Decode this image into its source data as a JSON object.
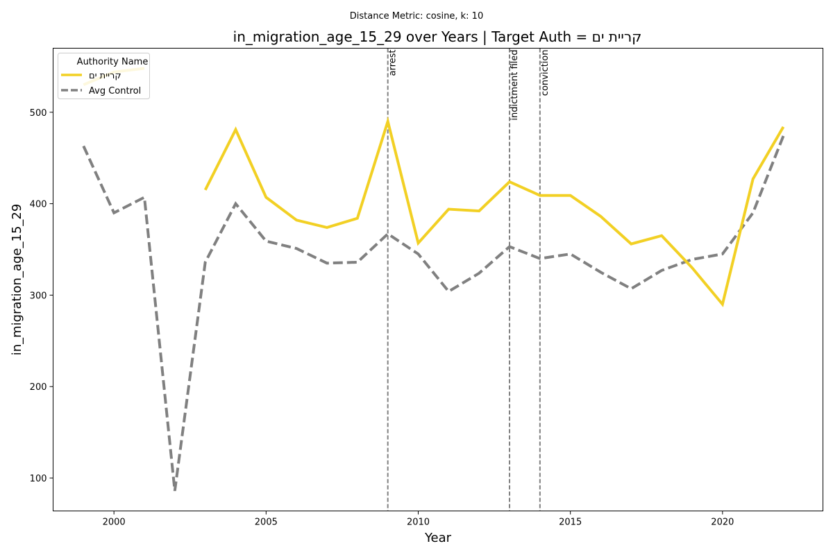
{
  "suptitle": "Distance Metric: cosine, k: 10",
  "chart_data": {
    "type": "line",
    "title": "in_migration_age_15_29 over Years | Target Auth = קריית ים",
    "xlabel": "Year",
    "ylabel": "in_migration_age_15_29",
    "xlim": [
      1998,
      2023.3
    ],
    "ylim": [
      64,
      570
    ],
    "xticks": [
      2000,
      2005,
      2010,
      2015,
      2020
    ],
    "yticks": [
      100,
      200,
      300,
      400,
      500
    ],
    "grid": false,
    "legend": {
      "title": "Authority Name",
      "placement": "top-left"
    },
    "series": [
      {
        "name": "קריית ים",
        "color": "#f2d024",
        "style": "solid",
        "points": [
          [
            1999,
            530
          ],
          [
            2000,
            544
          ],
          [
            2001,
            548
          ],
          [
            2002,
            null
          ],
          [
            2003,
            415
          ],
          [
            2004,
            481
          ],
          [
            2005,
            407
          ],
          [
            2006,
            382
          ],
          [
            2007,
            374
          ],
          [
            2008,
            384
          ],
          [
            2009,
            490
          ],
          [
            2010,
            357
          ],
          [
            2011,
            394
          ],
          [
            2012,
            392
          ],
          [
            2013,
            424
          ],
          [
            2014,
            409
          ],
          [
            2015,
            409
          ],
          [
            2016,
            386
          ],
          [
            2017,
            356
          ],
          [
            2018,
            365
          ],
          [
            2019,
            330
          ],
          [
            2020,
            290
          ],
          [
            2021,
            427
          ],
          [
            2022,
            484
          ]
        ]
      },
      {
        "name": "Avg Control",
        "color": "#808080",
        "style": "dashed",
        "points": [
          [
            1999,
            463
          ],
          [
            2000,
            390
          ],
          [
            2001,
            407
          ],
          [
            2002,
            86
          ],
          [
            2003,
            336
          ],
          [
            2004,
            400
          ],
          [
            2005,
            359
          ],
          [
            2006,
            351
          ],
          [
            2007,
            335
          ],
          [
            2008,
            336
          ],
          [
            2009,
            367
          ],
          [
            2010,
            345
          ],
          [
            2011,
            304
          ],
          [
            2012,
            324
          ],
          [
            2013,
            353
          ],
          [
            2014,
            340
          ],
          [
            2015,
            345
          ],
          [
            2016,
            325
          ],
          [
            2017,
            307
          ],
          [
            2018,
            327
          ],
          [
            2019,
            339
          ],
          [
            2020,
            345
          ],
          [
            2021,
            390
          ],
          [
            2022,
            474
          ]
        ]
      }
    ],
    "annotations": [
      {
        "x": 2009,
        "label": "arrest"
      },
      {
        "x": 2013,
        "label": "indictment filed"
      },
      {
        "x": 2014,
        "label": "conviction"
      }
    ]
  }
}
